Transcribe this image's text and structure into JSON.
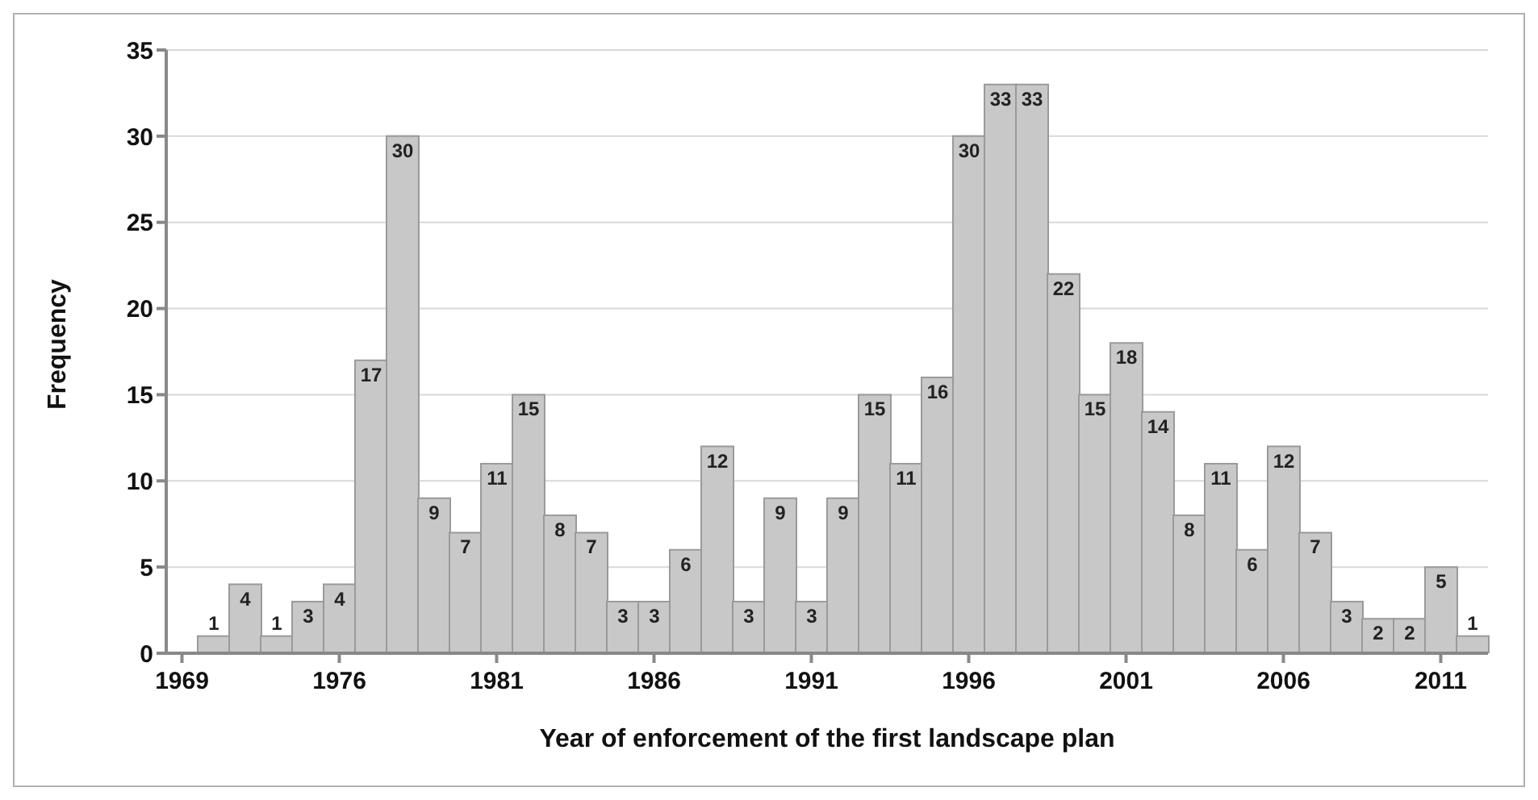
{
  "chart_data": {
    "type": "bar",
    "xlabel": "Year of enforcement of the first landscape plan",
    "ylabel": "Frequency",
    "categories": [
      "1969",
      null,
      null,
      null,
      null,
      "1976",
      null,
      null,
      null,
      null,
      "1981",
      null,
      null,
      null,
      null,
      "1986",
      null,
      null,
      null,
      null,
      "1991",
      null,
      null,
      null,
      null,
      "1996",
      null,
      null,
      null,
      null,
      "2001",
      null,
      null,
      null,
      null,
      "2006",
      null,
      null,
      null,
      null,
      "2011",
      null
    ],
    "values": [
      null,
      1,
      4,
      1,
      3,
      4,
      17,
      30,
      9,
      7,
      11,
      15,
      8,
      7,
      3,
      3,
      6,
      12,
      3,
      9,
      3,
      9,
      15,
      11,
      16,
      30,
      33,
      33,
      22,
      15,
      18,
      14,
      8,
      11,
      6,
      12,
      7,
      3,
      2,
      2,
      5,
      1
    ],
    "color": "#c8c8c8",
    "ylim": [
      0,
      35
    ],
    "yticks": [
      0,
      5,
      10,
      15,
      20,
      25,
      30,
      35
    ],
    "grid": "y",
    "data_labels": true
  }
}
